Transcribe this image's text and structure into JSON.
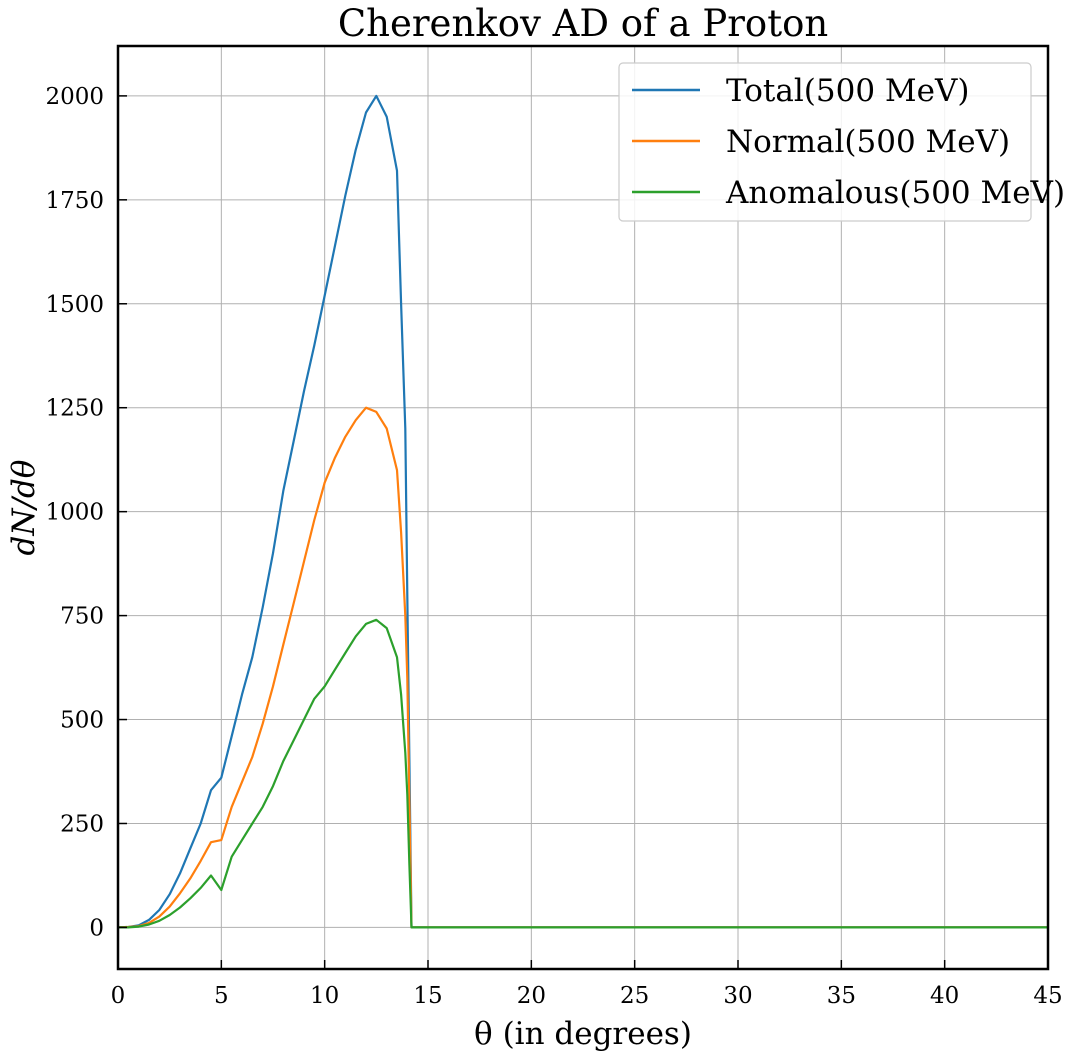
{
  "chart_data": {
    "type": "line",
    "title": "Cherenkov AD of a Proton",
    "xlabel": "θ (in degrees)",
    "ylabel": "dN/dθ",
    "xlim": [
      0,
      45
    ],
    "ylim": [
      -100,
      2120
    ],
    "xticks": [
      0,
      5,
      10,
      15,
      20,
      25,
      30,
      35,
      40,
      45
    ],
    "yticks": [
      0,
      250,
      500,
      750,
      1000,
      1250,
      1500,
      1750,
      2000
    ],
    "grid": true,
    "legend_position": "top-right",
    "x": [
      0,
      0.5,
      1,
      1.5,
      2,
      2.5,
      3,
      3.5,
      4,
      4.5,
      5,
      5.5,
      6,
      6.5,
      7,
      7.5,
      8,
      8.5,
      9,
      9.5,
      10,
      10.5,
      11,
      11.5,
      12,
      12.5,
      13,
      13.5,
      13.7,
      13.9,
      14.0,
      14.1,
      14.2,
      15,
      20,
      25,
      30,
      35,
      40,
      45
    ],
    "series": [
      {
        "name": "Total(500 MeV)",
        "color": "#1f77b4",
        "values": [
          0,
          1,
          5,
          18,
          42,
          80,
          130,
          190,
          250,
          330,
          360,
          460,
          560,
          650,
          770,
          900,
          1050,
          1170,
          1290,
          1400,
          1520,
          1640,
          1760,
          1870,
          1960,
          2000,
          1950,
          1820,
          1500,
          1200,
          800,
          400,
          0,
          0,
          0,
          0,
          0,
          0,
          0,
          0
        ]
      },
      {
        "name": "Normal(500 MeV)",
        "color": "#ff7f0e",
        "values": [
          0,
          1,
          3,
          11,
          26,
          50,
          82,
          118,
          160,
          205,
          210,
          290,
          350,
          410,
          490,
          580,
          680,
          780,
          880,
          980,
          1070,
          1130,
          1180,
          1220,
          1250,
          1240,
          1200,
          1100,
          950,
          750,
          600,
          300,
          0,
          0,
          0,
          0,
          0,
          0,
          0,
          0
        ]
      },
      {
        "name": "Anomalous(500 MeV)",
        "color": "#2ca02c",
        "values": [
          0,
          0,
          2,
          7,
          16,
          30,
          48,
          70,
          95,
          125,
          90,
          170,
          210,
          250,
          290,
          340,
          400,
          450,
          500,
          550,
          580,
          620,
          660,
          700,
          730,
          740,
          720,
          650,
          560,
          420,
          320,
          150,
          0,
          0,
          0,
          0,
          0,
          0,
          0,
          0
        ]
      }
    ]
  }
}
